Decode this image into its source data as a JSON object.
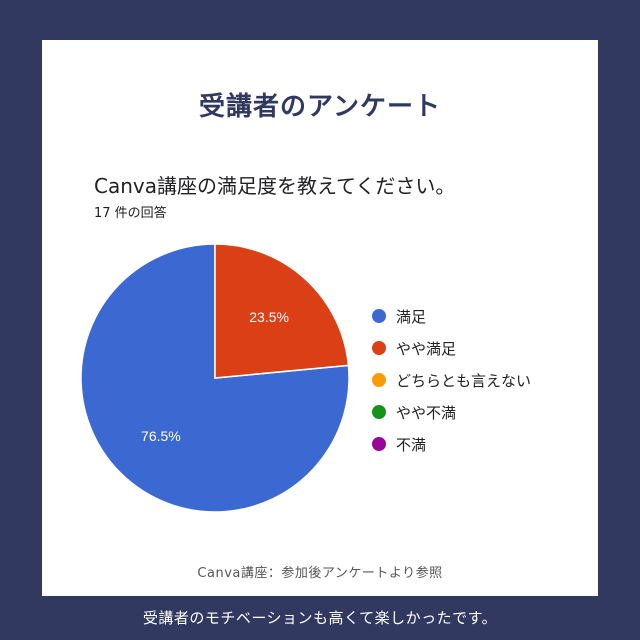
{
  "heading": "受講者のアンケート",
  "source_note": "Canva講座：参加後アンケートより参照",
  "footer_text": "受講者のモチベーションも高くて楽しかったです。",
  "chart_data": {
    "type": "pie",
    "title": "Canva講座の満足度を教えてください。",
    "subtitle": "17 件の回答",
    "legend_position": "right",
    "slices": [
      {
        "label": "満足",
        "value": 76.5,
        "display": "76.5%",
        "color": "#3c69d1"
      },
      {
        "label": "やや満足",
        "value": 23.5,
        "display": "23.5%",
        "color": "#db3f16"
      },
      {
        "label": "どちらとも言えない",
        "value": 0,
        "display": "",
        "color": "#fb9c05"
      },
      {
        "label": "やや不満",
        "value": 0,
        "display": "",
        "color": "#15931b"
      },
      {
        "label": "不満",
        "value": 0,
        "display": "",
        "color": "#980798"
      }
    ]
  }
}
